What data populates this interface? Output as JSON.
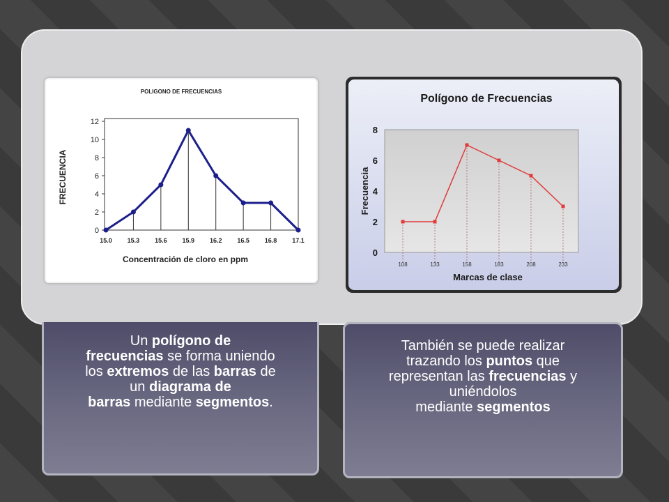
{
  "chart_data": [
    {
      "type": "line",
      "title": "POLIGONO DE FRECUENCIAS",
      "xlabel": "Concentración de cloro en ppm",
      "ylabel": "FRECUENCIA",
      "x": [
        "15.0",
        "15.3",
        "15.6",
        "15.9",
        "16.2",
        "16.5",
        "16.8",
        "17.1"
      ],
      "values": [
        0,
        2,
        5,
        11,
        6,
        3,
        3,
        0
      ],
      "ylim": [
        0,
        12
      ],
      "yticks": [
        "0",
        "2",
        "4",
        "6",
        "8",
        "10",
        "12"
      ],
      "grid": false,
      "color": "#1c1f8a"
    },
    {
      "type": "line",
      "title": "Polígono de Frecuencias",
      "xlabel": "Marcas de clase",
      "ylabel": "Frecuencia",
      "x": [
        "108",
        "133",
        "158",
        "183",
        "208",
        "233"
      ],
      "values": [
        2,
        2,
        7,
        6,
        5,
        3
      ],
      "ylim": [
        0,
        8
      ],
      "yticks": [
        "0",
        "2",
        "4",
        "6",
        "8"
      ],
      "grid": false,
      "color": "#e03a3a"
    }
  ],
  "left_card": {
    "segments": [
      {
        "text": "Un ",
        "bold": false
      },
      {
        "text": "polígono de",
        "bold": true
      },
      {
        "text": " ",
        "bold": false,
        "br": true
      },
      {
        "text": "frecuencias",
        "bold": true
      },
      {
        "text": " se forma uniendo",
        "bold": false,
        "br": true
      },
      {
        "text": "los ",
        "bold": false
      },
      {
        "text": "extremos",
        "bold": true
      },
      {
        "text": " de las ",
        "bold": false
      },
      {
        "text": "barras",
        "bold": true
      },
      {
        "text": " de",
        "bold": false,
        "br": true
      },
      {
        "text": "un ",
        "bold": false
      },
      {
        "text": "diagrama de",
        "bold": true,
        "br": true
      },
      {
        "text": "barras",
        "bold": true
      },
      {
        "text": " mediante ",
        "bold": false
      },
      {
        "text": "segmentos",
        "bold": true
      },
      {
        "text": ".",
        "bold": false
      }
    ]
  },
  "right_card": {
    "segments": [
      {
        "text": "También se puede realizar",
        "bold": false,
        "br": true
      },
      {
        "text": "trazando los ",
        "bold": false
      },
      {
        "text": "puntos",
        "bold": true
      },
      {
        "text": " que",
        "bold": false,
        "br": true
      },
      {
        "text": "representan las ",
        "bold": false
      },
      {
        "text": "frecuencias",
        "bold": true
      },
      {
        "text": " y",
        "bold": false,
        "br": true
      },
      {
        "text": "uniéndolos",
        "bold": false,
        "br": true
      },
      {
        "text": "mediante ",
        "bold": false
      },
      {
        "text": "segmentos",
        "bold": true
      }
    ]
  }
}
